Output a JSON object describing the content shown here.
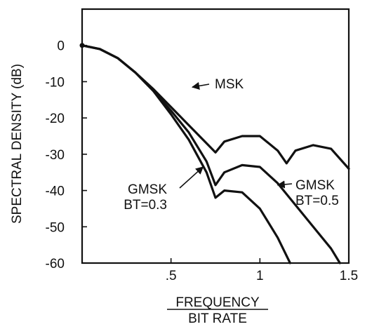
{
  "chart_data": {
    "type": "line",
    "title": "",
    "ylabel": "SPECTRAL DENSITY (dB)",
    "xlabel_numerator": "FREQUENCY",
    "xlabel_denominator": "BIT RATE",
    "xlim": [
      0,
      1.5
    ],
    "ylim": [
      -60,
      10
    ],
    "xticks": [
      {
        "value": 0.5,
        "label": ".5"
      },
      {
        "value": 1,
        "label": "1"
      },
      {
        "value": 1.5,
        "label": "1.5"
      }
    ],
    "yticks": [
      {
        "value": 0,
        "label": "0"
      },
      {
        "value": -10,
        "label": "-10"
      },
      {
        "value": -20,
        "label": "-20"
      },
      {
        "value": -30,
        "label": "-30"
      },
      {
        "value": -40,
        "label": "-40"
      },
      {
        "value": -50,
        "label": "-50"
      },
      {
        "value": -60,
        "label": "-60"
      }
    ],
    "grid": false,
    "series": [
      {
        "name": "MSK",
        "x": [
          0,
          0.1,
          0.2,
          0.3,
          0.4,
          0.5,
          0.6,
          0.7,
          0.75,
          0.8,
          0.9,
          1.0,
          1.1,
          1.15,
          1.2,
          1.3,
          1.4,
          1.5
        ],
        "y": [
          0,
          -1,
          -3.5,
          -7.5,
          -12,
          -17,
          -22,
          -27,
          -29.5,
          -26.5,
          -25,
          -25,
          -29,
          -32.5,
          -29,
          -27.5,
          -28.5,
          -34
        ]
      },
      {
        "name": "GMSK BT=0.5",
        "x": [
          0,
          0.1,
          0.2,
          0.3,
          0.4,
          0.5,
          0.6,
          0.7,
          0.75,
          0.8,
          0.9,
          1.0,
          1.1,
          1.2,
          1.3,
          1.4,
          1.45
        ],
        "y": [
          0,
          -1,
          -3.5,
          -7.5,
          -12.5,
          -18,
          -24,
          -32,
          -38.5,
          -35,
          -33,
          -33.5,
          -38,
          -44,
          -50,
          -56,
          -60
        ]
      },
      {
        "name": "GMSK BT=0.3",
        "x": [
          0,
          0.1,
          0.2,
          0.3,
          0.4,
          0.5,
          0.6,
          0.7,
          0.75,
          0.8,
          0.9,
          1.0,
          1.1,
          1.17
        ],
        "y": [
          0,
          -1,
          -3.5,
          -7.5,
          -12.5,
          -19,
          -26,
          -35,
          -42,
          -40,
          -40.5,
          -45,
          -53,
          -60
        ]
      }
    ],
    "annotations": [
      {
        "lines": [
          "MSK"
        ],
        "series": "MSK",
        "target": {
          "x": 0.62,
          "y": -11.5
        }
      },
      {
        "lines": [
          "GMSK",
          "BT=0.3"
        ],
        "series": "GMSK BT=0.3",
        "target": {
          "x": 0.68,
          "y": -33.5
        }
      },
      {
        "lines": [
          "GMSK",
          "BT=0.5"
        ],
        "series": "GMSK BT=0.5",
        "target": {
          "x": 1.1,
          "y": -38.5
        }
      }
    ]
  }
}
